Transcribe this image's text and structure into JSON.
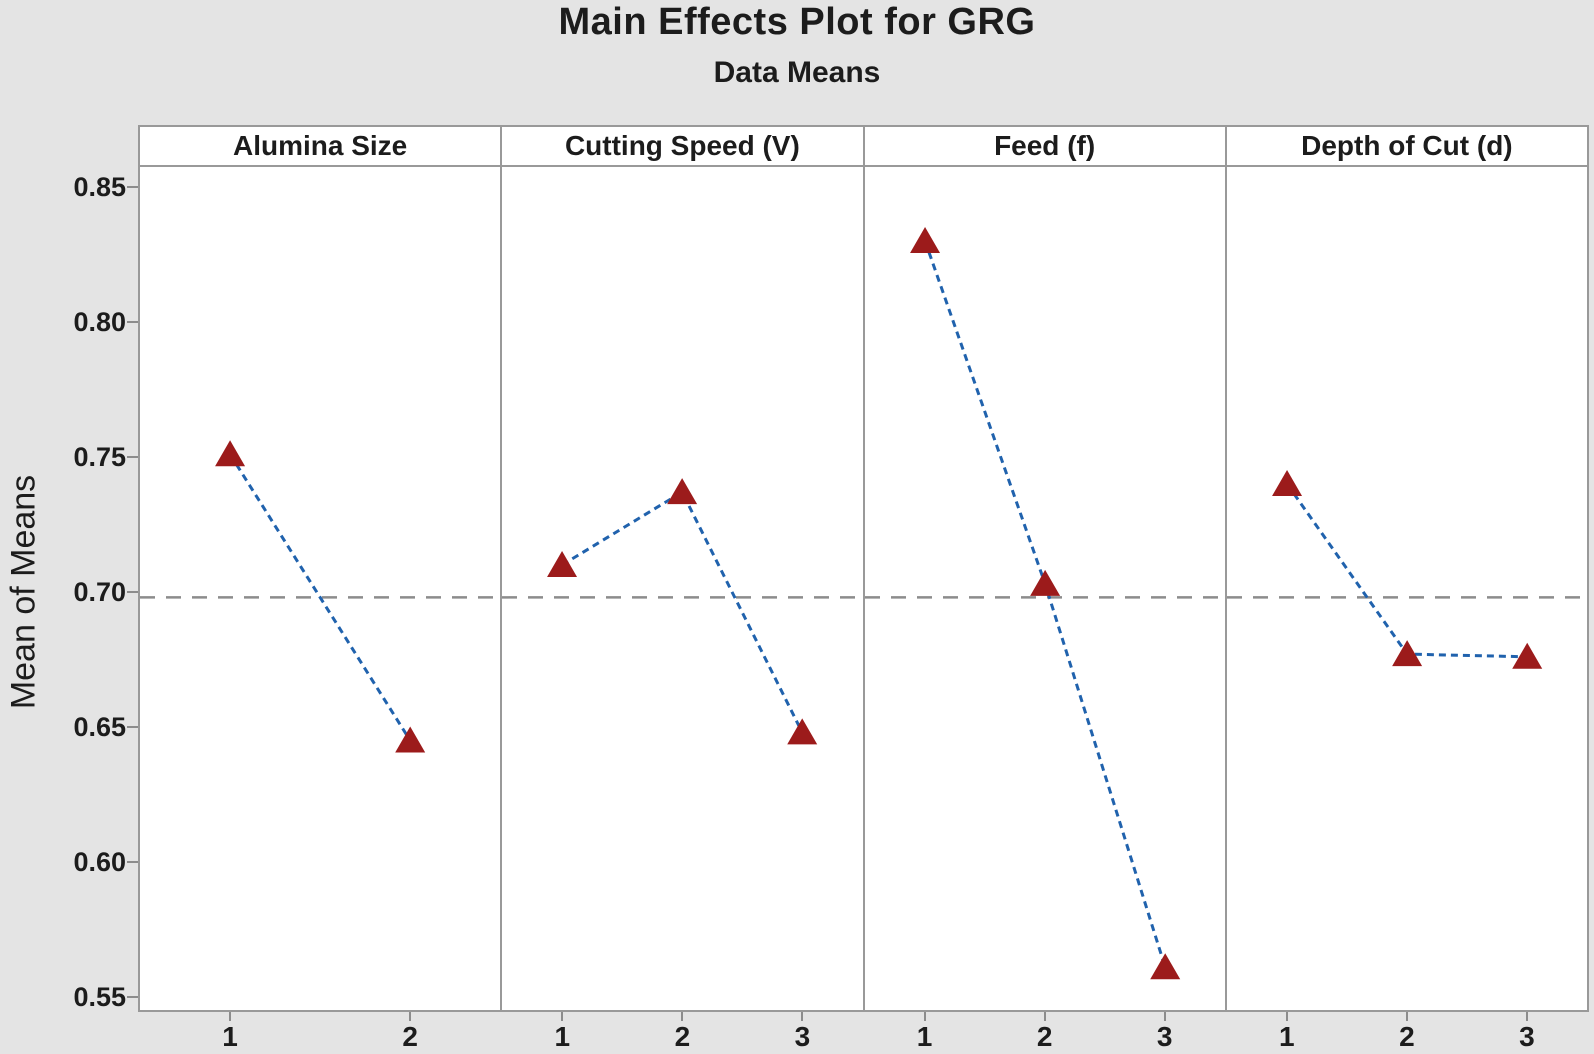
{
  "title": "Main Effects Plot for GRG",
  "subtitle": "Data Means",
  "ylabel": "Mean of Means",
  "chart_data": {
    "type": "line",
    "title": "Main Effects Plot for GRG",
    "subtitle": "Data Means",
    "ylabel": "Mean of Means",
    "grid": false,
    "legend_position": "none",
    "yticks": [
      0.85,
      0.8,
      0.75,
      0.7,
      0.65,
      0.6,
      0.55
    ],
    "ylim": [
      0.544,
      0.858
    ],
    "reference_line_mean": 0.698,
    "marker": "triangle",
    "panels": [
      {
        "label": "Alumina Size",
        "x": [
          1,
          2
        ],
        "values": [
          0.751,
          0.645
        ]
      },
      {
        "label": "Cutting Speed (V)",
        "x": [
          1,
          2,
          3
        ],
        "values": [
          0.71,
          0.737,
          0.648
        ]
      },
      {
        "label": "Feed (f)",
        "x": [
          1,
          2,
          3
        ],
        "values": [
          0.83,
          0.703,
          0.561
        ]
      },
      {
        "label": "Depth of Cut (d)",
        "x": [
          1,
          2,
          3
        ],
        "values": [
          0.74,
          0.677,
          0.676
        ]
      }
    ],
    "colors": {
      "line": "#2062ad",
      "marker": "#9c1b1b",
      "reference_line": "#8c8c8c",
      "panel_border": "#999999",
      "background": "#e4e4e4",
      "plot_background": "#ffffff",
      "text": "#1c1c1c"
    }
  }
}
